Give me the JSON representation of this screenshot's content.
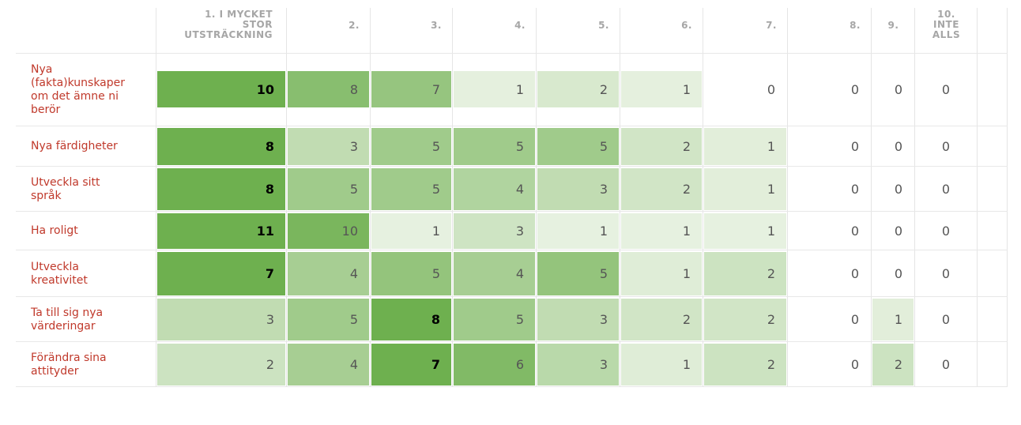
{
  "chart_data": {
    "type": "heatmap",
    "columns": [
      "1. I MYCKET\nSTOR\nUTSTRÄCKNING",
      "2.",
      "3.",
      "4.",
      "5.",
      "6.",
      "7.",
      "8.",
      "9.",
      "10.\nINTE\nALLS"
    ],
    "rows": [
      "Nya (fakta)kunskaper om det ämne ni berör",
      "Nya färdigheter",
      "Utveckla sitt språk",
      "Ha roligt",
      "Utveckla kreativitet",
      "Ta till sig nya värderingar",
      "Förändra sina attityder"
    ],
    "values": [
      [
        10,
        8,
        7,
        1,
        2,
        1,
        0,
        0,
        0,
        0
      ],
      [
        8,
        3,
        5,
        5,
        5,
        2,
        1,
        0,
        0,
        0
      ],
      [
        8,
        5,
        5,
        4,
        3,
        2,
        1,
        0,
        0,
        0
      ],
      [
        11,
        10,
        1,
        3,
        1,
        1,
        1,
        0,
        0,
        0
      ],
      [
        7,
        4,
        5,
        4,
        5,
        1,
        2,
        0,
        0,
        0
      ],
      [
        3,
        5,
        8,
        5,
        3,
        2,
        2,
        0,
        1,
        0
      ],
      [
        2,
        4,
        7,
        6,
        3,
        1,
        2,
        0,
        2,
        0
      ]
    ],
    "colors": {
      "max": "#6eb04f",
      "min": "#f2f7ee",
      "label": "#c0392b",
      "header": "#a6a6a6"
    }
  }
}
